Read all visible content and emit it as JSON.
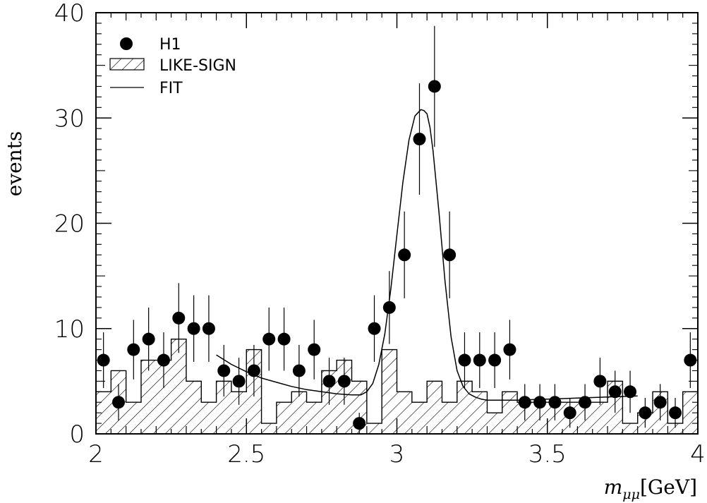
{
  "chart_data": {
    "type": "scatter",
    "xlim": [
      2,
      4
    ],
    "ylim": [
      0,
      40
    ],
    "xticks": [
      {
        "value": 2,
        "label": "2"
      },
      {
        "value": 2.5,
        "label": "2.5"
      },
      {
        "value": 3,
        "label": "3"
      },
      {
        "value": 3.5,
        "label": "3.5"
      },
      {
        "value": 4,
        "label": "4"
      }
    ],
    "yticks": [
      {
        "value": 0,
        "label": "0"
      },
      {
        "value": 10,
        "label": "10"
      },
      {
        "value": 20,
        "label": "20"
      },
      {
        "value": 30,
        "label": "30"
      },
      {
        "value": 40,
        "label": "40"
      }
    ],
    "ylabel": "events",
    "xlabel": {
      "symbol": "m",
      "subscript": "μμ",
      "unit": "[GeV]"
    },
    "legend": {
      "position": "top-left",
      "entries": [
        {
          "label": "H1",
          "style": "marker"
        },
        {
          "label": "LIKE-SIGN",
          "style": "hatch"
        },
        {
          "label": "FIT",
          "style": "line"
        }
      ]
    },
    "series": [
      {
        "name": "H1",
        "style": "points-with-errors",
        "color": "#000000",
        "x": [
          2.025,
          2.075,
          2.125,
          2.175,
          2.225,
          2.275,
          2.325,
          2.375,
          2.425,
          2.475,
          2.525,
          2.575,
          2.625,
          2.675,
          2.725,
          2.775,
          2.825,
          2.875,
          2.925,
          2.975,
          3.025,
          3.075,
          3.125,
          3.175,
          3.225,
          3.275,
          3.325,
          3.375,
          3.425,
          3.475,
          3.525,
          3.575,
          3.625,
          3.675,
          3.725,
          3.775,
          3.825,
          3.875,
          3.925,
          3.975
        ],
        "y": [
          7,
          3,
          8,
          9,
          7,
          11,
          10,
          10,
          6,
          5,
          6,
          9,
          9,
          6,
          8,
          5,
          5,
          1,
          10,
          12,
          17,
          28,
          33,
          17,
          7,
          7,
          7,
          8,
          3,
          3,
          3,
          2,
          3,
          5,
          4,
          4,
          2,
          3,
          2,
          7
        ]
      },
      {
        "name": "LIKE-SIGN",
        "style": "hatched-histogram",
        "bin_width": 0.05,
        "x_edges_start": 2.0,
        "values": [
          4,
          6,
          3,
          7,
          7,
          9,
          5,
          3,
          5,
          4,
          8,
          1,
          3,
          4,
          3,
          6,
          7,
          5,
          1,
          8,
          4,
          3,
          5,
          3,
          5,
          4,
          2,
          4,
          3,
          3,
          3,
          3,
          3,
          3,
          5,
          1,
          2,
          4,
          1,
          4
        ]
      },
      {
        "name": "FIT",
        "style": "line",
        "x": [
          2.4,
          2.45,
          2.5,
          2.55,
          2.6,
          2.65,
          2.7,
          2.75,
          2.8,
          2.85,
          2.88,
          2.9,
          2.92,
          2.94,
          2.96,
          2.98,
          3.0,
          3.02,
          3.04,
          3.06,
          3.08,
          3.09,
          3.1,
          3.11,
          3.12,
          3.14,
          3.16,
          3.18,
          3.2,
          3.22,
          3.24,
          3.26,
          3.28,
          3.3,
          3.35,
          3.4,
          3.5,
          3.6,
          3.7,
          3.8
        ],
        "y": [
          7.5,
          6.6,
          5.9,
          5.3,
          4.9,
          4.5,
          4.2,
          4.0,
          3.8,
          3.7,
          3.7,
          4.0,
          4.8,
          6.6,
          9.5,
          13.8,
          18.9,
          23.9,
          27.9,
          30.2,
          30.8,
          30.7,
          30.4,
          29.1,
          26.9,
          21.0,
          14.5,
          9.2,
          6.0,
          4.5,
          3.8,
          3.5,
          3.3,
          3.2,
          3.2,
          3.2,
          3.3,
          3.4,
          3.5,
          3.6
        ]
      }
    ]
  }
}
